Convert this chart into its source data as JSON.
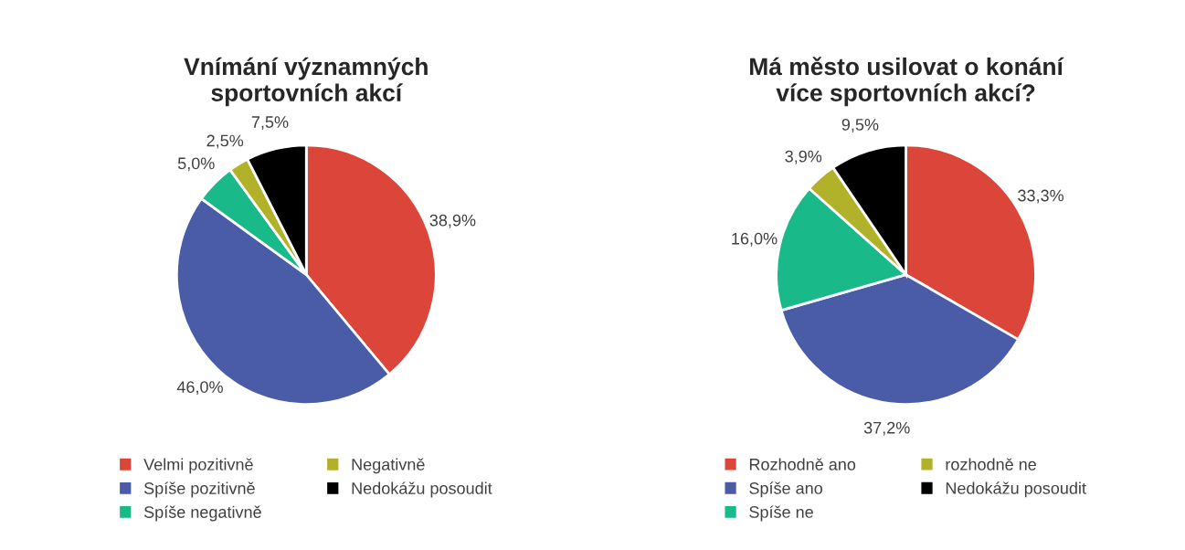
{
  "chart_data": [
    {
      "type": "pie",
      "title": "Vnímání významných sportovních akcí",
      "categories": [
        "Velmi pozitivně",
        "Spíše pozitivně",
        "Spíše negativně",
        "Negativně",
        "Nedokážu posoudit"
      ],
      "values": [
        38.9,
        46.0,
        5.0,
        2.5,
        7.5
      ],
      "value_labels": [
        "38,9%",
        "46,0%",
        "5,0%",
        "2,5%",
        "7,5%"
      ],
      "colors": [
        "#dc4539",
        "#4a5ba8",
        "#1ab98a",
        "#b2b22a",
        "#000000"
      ],
      "legend": "bottom"
    },
    {
      "type": "pie",
      "title": "Má město usilovat o konání více sportovních akcí?",
      "categories": [
        "Rozhodně ano",
        "Spíše ano",
        "Spíše ne",
        "rozhodně ne",
        "Nedokážu posoudit"
      ],
      "values": [
        33.3,
        37.2,
        16.0,
        3.9,
        9.5
      ],
      "value_labels": [
        "33,3%",
        "37,2%",
        "16,0%",
        "3,9%",
        "9,5%"
      ],
      "colors": [
        "#dc4539",
        "#4a5ba8",
        "#1ab98a",
        "#b2b22a",
        "#000000"
      ],
      "legend": "bottom"
    }
  ]
}
